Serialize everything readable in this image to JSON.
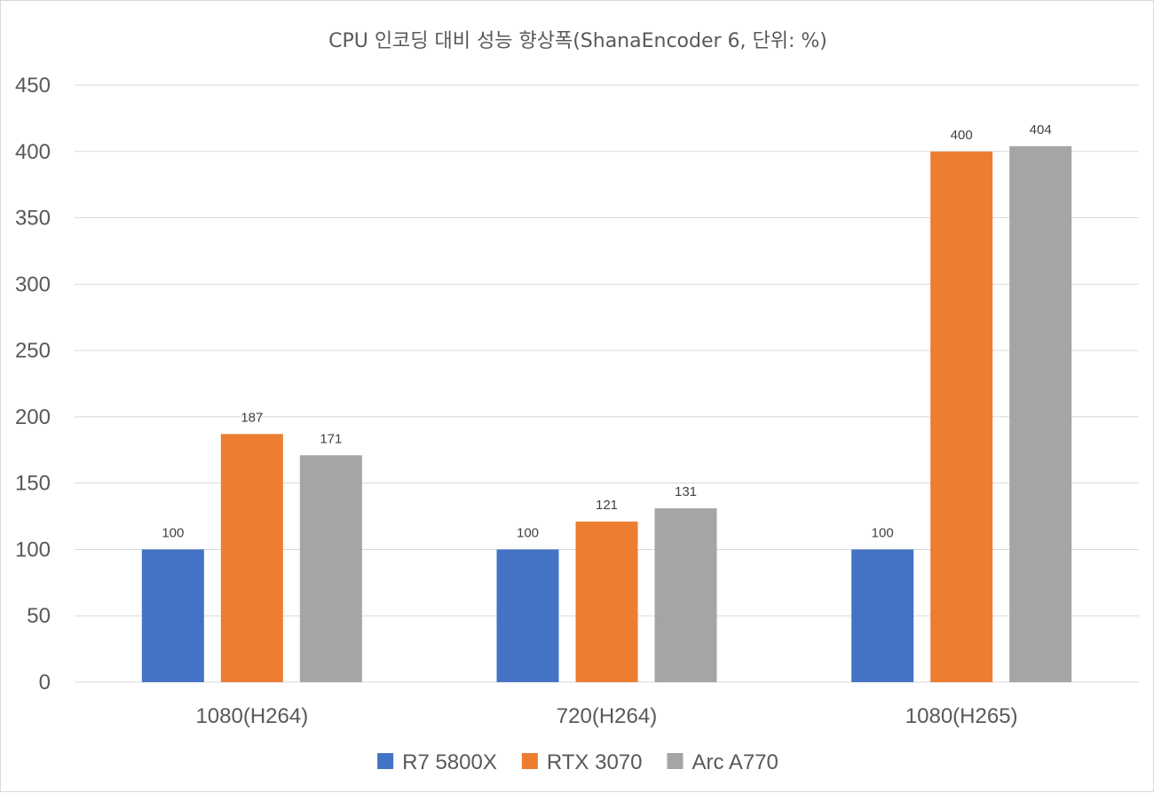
{
  "chart_data": {
    "type": "bar",
    "title": "CPU 인코딩 대비 성능 향상폭(ShanaEncoder 6, 단위: %)",
    "categories": [
      "1080(H264)",
      "720(H264)",
      "1080(H265)"
    ],
    "series": [
      {
        "name": "R7 5800X",
        "values": [
          100,
          100,
          100
        ],
        "color": "#4472C4"
      },
      {
        "name": "RTX 3070",
        "values": [
          187,
          121,
          400
        ],
        "color": "#ED7D31"
      },
      {
        "name": "Arc A770",
        "values": [
          171,
          131,
          404
        ],
        "color": "#A5A5A5"
      }
    ],
    "yticks": [
      0,
      50,
      100,
      150,
      200,
      250,
      300,
      350,
      400,
      450
    ],
    "ylim": [
      0,
      450
    ],
    "grid": true,
    "legend_position": "bottom",
    "data_labels": true
  }
}
